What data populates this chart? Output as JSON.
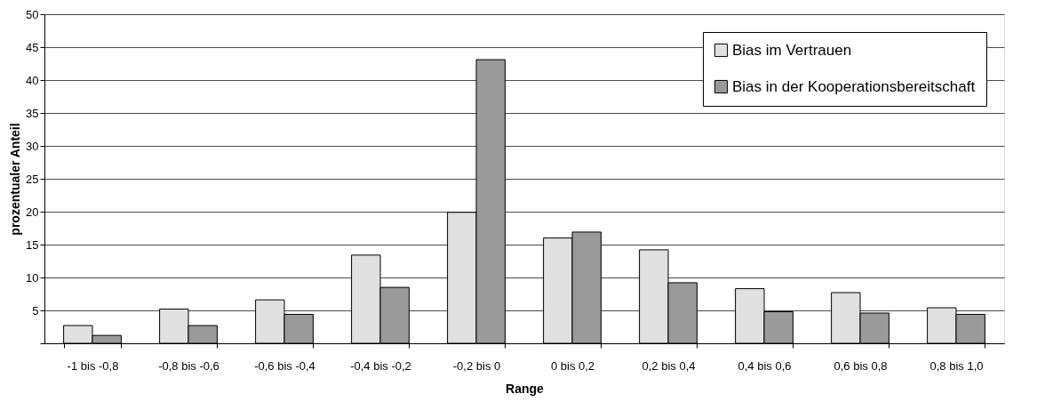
{
  "chart_data": {
    "type": "bar",
    "xlabel": "Range",
    "ylabel": "prozentualer Anteil",
    "categories": [
      "-1 bis -0,8",
      "-0,8 bis -0,6",
      "-0,6 bis -0,4",
      "-0,4 bis -0,2",
      "-0,2 bis 0",
      "0 bis 0,2",
      "0,2 bis 0,4",
      "0,4 bis 0,6",
      "0,6 bis 0,8",
      "0,8 bis 1,0"
    ],
    "series": [
      {
        "name": "Bias im Vertrauen",
        "color": "#e0e0e0",
        "values": [
          2.7,
          5.2,
          6.6,
          13.4,
          19.9,
          16.0,
          14.2,
          8.3,
          7.7,
          5.4
        ]
      },
      {
        "name": "Bias in der Kooperationsbereitschaft",
        "color": "#9a9a9a",
        "values": [
          1.2,
          2.7,
          4.4,
          8.5,
          43.1,
          16.9,
          9.2,
          4.8,
          4.6,
          4.4
        ]
      }
    ],
    "ylim": [
      0,
      50
    ],
    "yticks": [
      {
        "value": 0,
        "label": null
      },
      5,
      10,
      15,
      20,
      25,
      30,
      35,
      40,
      45,
      50
    ],
    "grid": "y",
    "legend": "top right"
  }
}
